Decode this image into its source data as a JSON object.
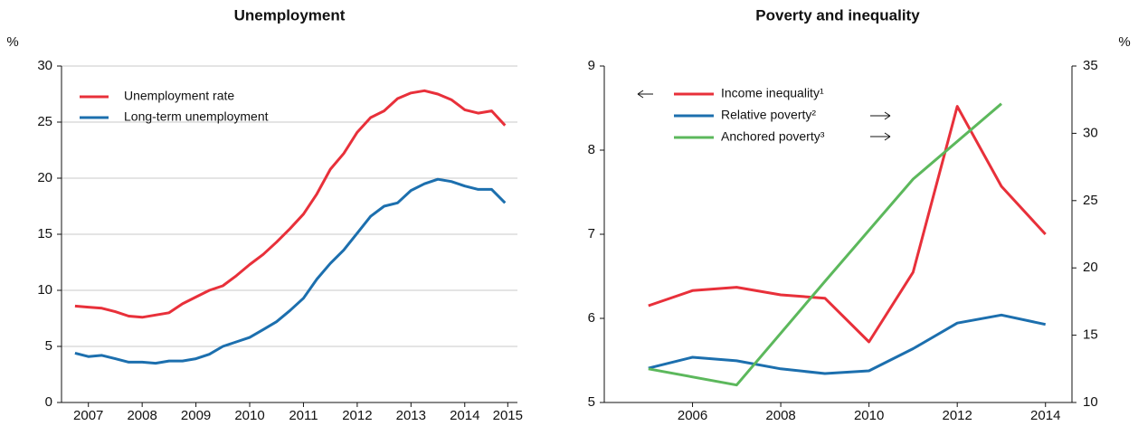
{
  "chart_data": [
    {
      "type": "line",
      "title": "Unemployment",
      "unit": "%",
      "x": [
        2007.25,
        2007.5,
        2007.75,
        2008,
        2008.25,
        2008.5,
        2008.75,
        2009,
        2009.25,
        2009.5,
        2009.75,
        2010,
        2010.25,
        2010.5,
        2010.75,
        2011,
        2011.25,
        2011.5,
        2011.75,
        2012,
        2012.25,
        2012.5,
        2012.75,
        2013,
        2013.25,
        2013.5,
        2013.75,
        2014,
        2014.25,
        2014.5,
        2014.75,
        2015,
        2015.25
      ],
      "series": [
        {
          "name": "Unemployment rate",
          "color": "#e8303a",
          "values": [
            8.6,
            8.5,
            8.4,
            8.1,
            7.7,
            7.6,
            7.8,
            8.0,
            8.8,
            9.4,
            10.0,
            10.4,
            11.3,
            12.3,
            13.2,
            14.3,
            15.5,
            16.8,
            18.6,
            20.8,
            22.2,
            24.1,
            25.4,
            26.0,
            27.1,
            27.6,
            27.8,
            27.5,
            27.0,
            26.1,
            25.8,
            26.0,
            24.7
          ]
        },
        {
          "name": "Long-term unemployment",
          "color": "#1c6fae",
          "values": [
            4.4,
            4.1,
            4.2,
            3.9,
            3.6,
            3.6,
            3.5,
            3.7,
            3.7,
            3.9,
            4.3,
            5.0,
            5.4,
            5.8,
            6.5,
            7.2,
            8.2,
            9.3,
            11.0,
            12.4,
            13.6,
            15.1,
            16.6,
            17.5,
            17.8,
            18.9,
            19.5,
            19.9,
            19.7,
            19.3,
            19.0,
            19.0,
            17.8
          ]
        }
      ],
      "xlim": [
        2007,
        2015.48
      ],
      "xticks": [
        {
          "value": 2007.5,
          "label": "2007"
        },
        {
          "value": 2008.5,
          "label": "2008"
        },
        {
          "value": 2009.5,
          "label": "2009"
        },
        {
          "value": 2010.5,
          "label": "2010"
        },
        {
          "value": 2011.5,
          "label": "2011"
        },
        {
          "value": 2012.5,
          "label": "2012"
        },
        {
          "value": 2013.5,
          "label": "2013"
        },
        {
          "value": 2014.5,
          "label": "2014"
        },
        {
          "value": 2015.3,
          "label": "2015"
        }
      ],
      "ylim": [
        0,
        30
      ],
      "yticks": [
        0,
        5,
        10,
        15,
        20,
        25,
        30
      ],
      "grid": true,
      "legend": "upper left"
    },
    {
      "type": "line",
      "title": "Poverty and inequality",
      "unit": "%",
      "series": [
        {
          "name": "Income inequality¹",
          "color": "#e8303a",
          "axis": "y",
          "x": [
            2005,
            2006,
            2007,
            2008,
            2009,
            2010,
            2011,
            2012,
            2013,
            2014
          ],
          "values": [
            6.15,
            6.33,
            6.37,
            6.28,
            6.24,
            5.72,
            6.55,
            8.52,
            7.57,
            7.0
          ]
        },
        {
          "name": "Relative poverty²",
          "color": "#1c6fae",
          "axis": "y2",
          "x": [
            2005,
            2006,
            2007,
            2008,
            2009,
            2010,
            2011,
            2012,
            2013,
            2014
          ],
          "values": [
            12.55,
            13.36,
            13.1,
            12.5,
            12.15,
            12.35,
            14.0,
            15.9,
            16.5,
            15.8
          ]
        },
        {
          "name": "Anchored poverty³",
          "color": "#5cb85c",
          "axis": "y2",
          "x": [
            2005,
            2007,
            2009,
            2011,
            2013
          ],
          "values": [
            12.5,
            11.3,
            19.0,
            26.6,
            32.2
          ]
        }
      ],
      "xlim": [
        2004,
        2014.6
      ],
      "xticks": [
        2006,
        2008,
        2010,
        2012,
        2014
      ],
      "ylim": [
        5,
        9
      ],
      "yticks": [
        5,
        6,
        7,
        8,
        9
      ],
      "y2lim": [
        10,
        35
      ],
      "y2ticks": [
        10,
        15,
        20,
        25,
        30,
        35
      ],
      "grid": false,
      "legend": "upper left"
    }
  ]
}
